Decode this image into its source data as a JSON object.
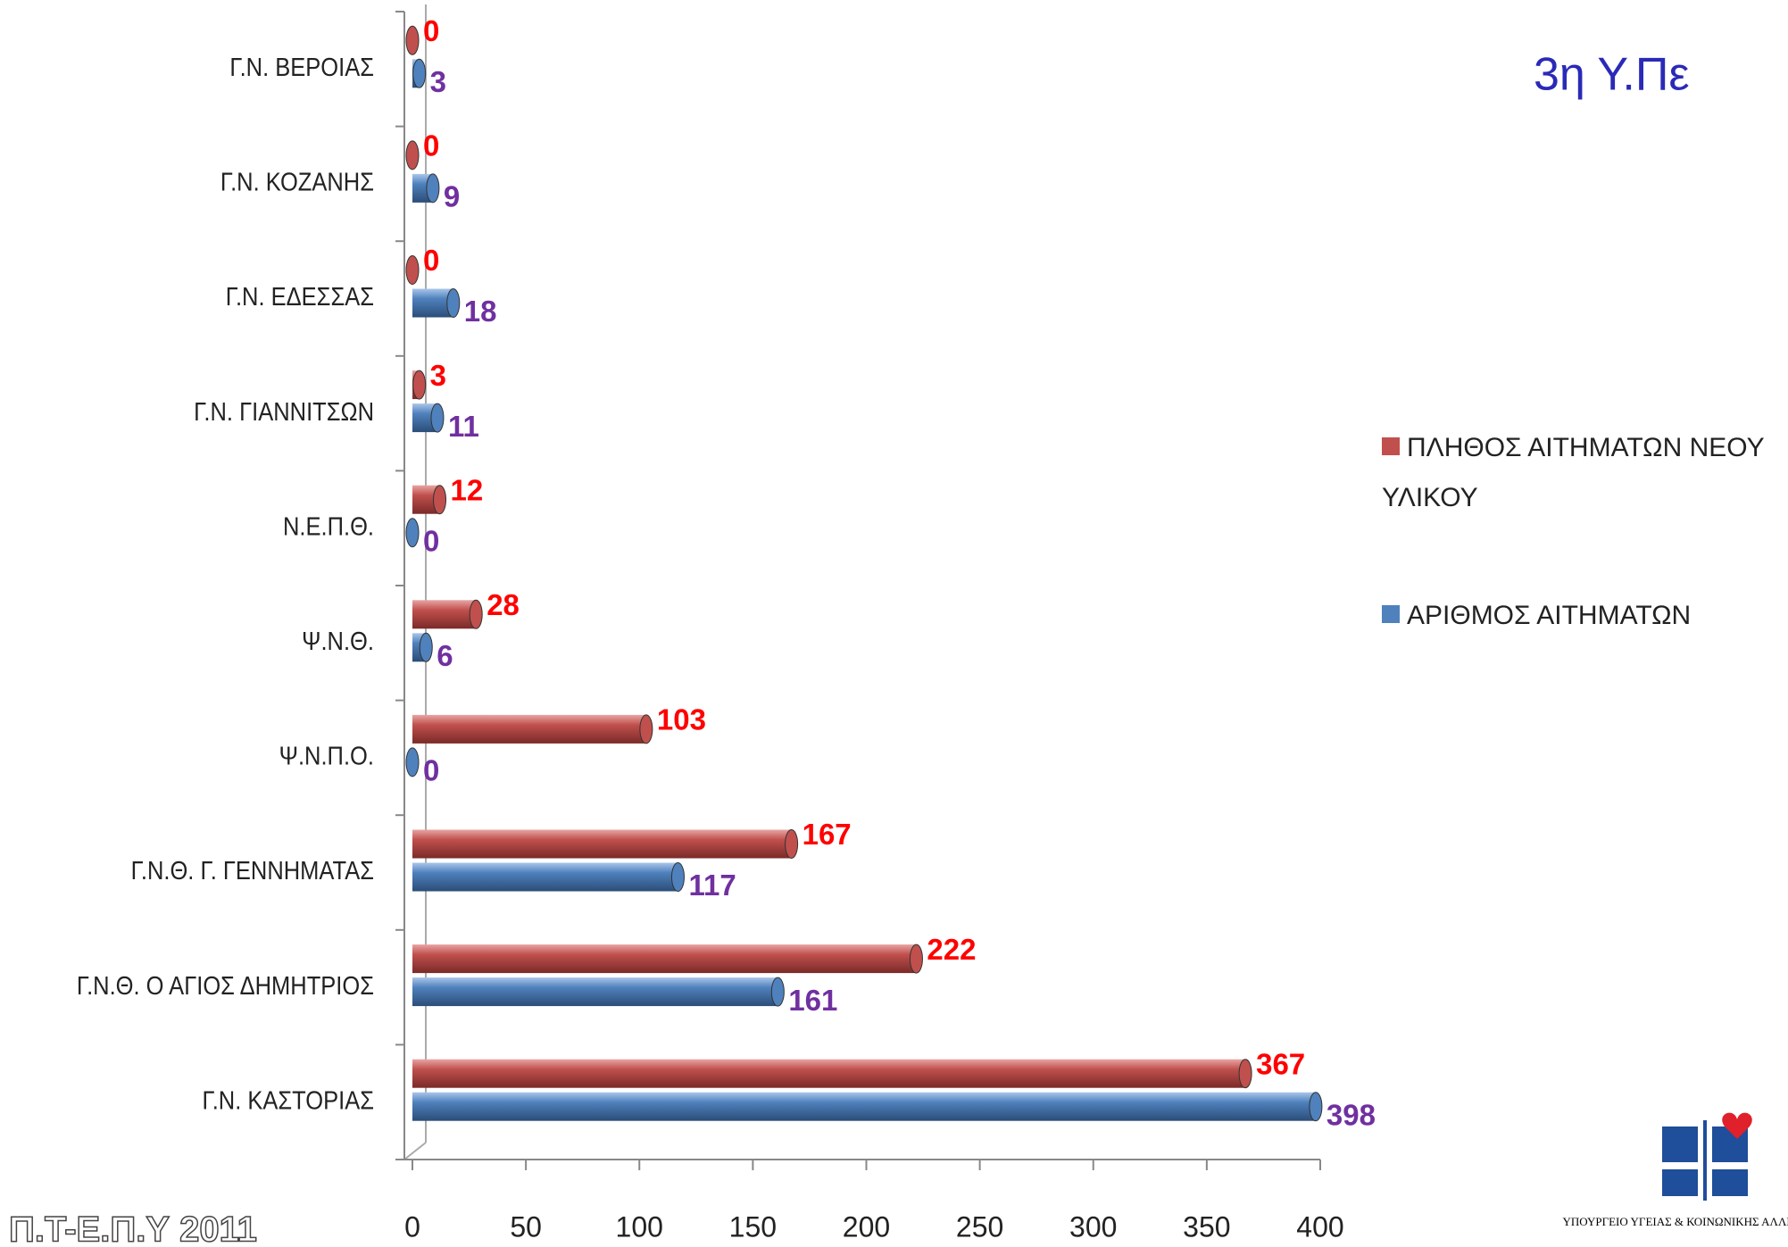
{
  "chart_data": {
    "type": "bar",
    "orientation": "horizontal",
    "title": "3η Υ.Πε",
    "categories": [
      "Γ.Ν. ΒΕΡΟΙΑΣ",
      "Γ.Ν. ΚΟΖΑΝΗΣ",
      "Γ.Ν.  ΕΔΕΣΣΑΣ",
      "Γ.Ν. ΓΙΑΝΝΙΤΣΩΝ",
      "Ν.Ε.Π.Θ.",
      "Ψ.Ν.Θ.",
      "Ψ.Ν.Π.Ο.",
      "Γ.Ν.Θ. Γ. ΓΕΝΝΗΜΑΤΑΣ",
      "Γ.Ν.Θ. Ο ΑΓΙΟΣ ΔΗΜΗΤΡΙΟΣ",
      "Γ.Ν. ΚΑΣΤΟΡΙΑΣ"
    ],
    "series": [
      {
        "name": "ΠΛΗΘΟΣ ΑΙΤΗΜΑΤΩΝ ΝΕΟΥ ΥΛΙΚΟΥ",
        "color": "#c0504d",
        "label_color": "#ff0000",
        "values": [
          0,
          0,
          0,
          3,
          12,
          28,
          103,
          167,
          222,
          367
        ]
      },
      {
        "name": "ΑΡΙΘΜΟΣ ΑΙΤΗΜΑΤΩΝ",
        "color": "#4f81bd",
        "label_color": "#7030a0",
        "values": [
          3,
          9,
          18,
          11,
          0,
          6,
          0,
          117,
          161,
          398
        ]
      }
    ],
    "xlim": [
      0,
      400
    ],
    "xticks": [
      0,
      50,
      100,
      150,
      200,
      250,
      300,
      350,
      400
    ],
    "legend": "right",
    "footer": "Π.Τ-Ε.Π.Υ 2011",
    "logo_text": "ΥΠΟΥΡΓΕΙΟ ΥΓΕΙΑΣ & ΚΟΙΝΩΝΙΚΗΣ ΑΛΛΗΛΕΓΓΥΗΣ"
  }
}
